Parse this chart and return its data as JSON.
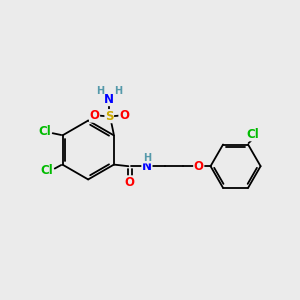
{
  "bg_color": "#ebebeb",
  "bond_color": "#000000",
  "colors": {
    "Cl": "#00bb00",
    "O": "#ff0000",
    "N": "#0000ff",
    "S": "#ccaa00",
    "H": "#5599aa"
  },
  "lw": 1.3,
  "fs": 8.5
}
